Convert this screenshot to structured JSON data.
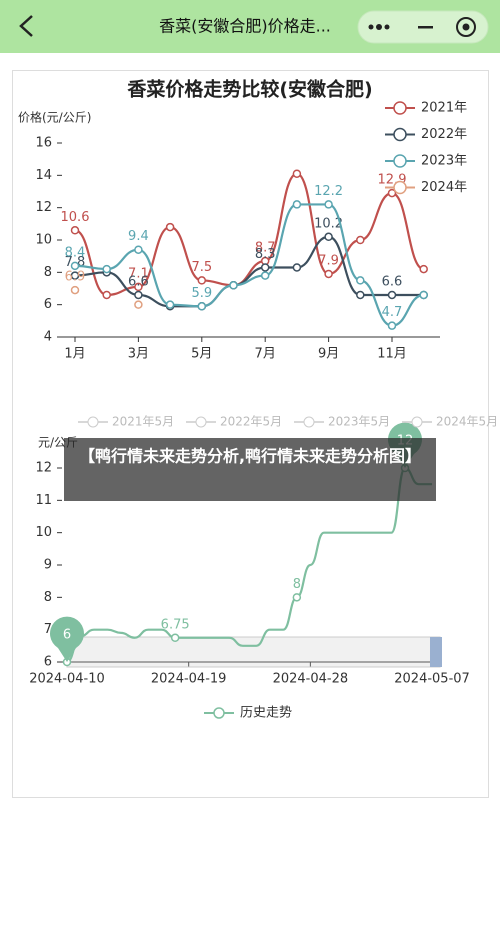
{
  "nav": {
    "title": "香菜(安徽合肥)价格走..."
  },
  "caption": "【鸭行情未来走势分析,鸭行情未来走势分析图】",
  "chart_data": [
    {
      "type": "line",
      "title": "香菜价格走势比较(安徽合肥)",
      "y_label": "价格(元/公斤)",
      "categories": [
        "1月",
        null,
        "3月",
        null,
        "5月",
        null,
        "7月",
        null,
        "9月",
        null,
        "11月",
        null
      ],
      "ylim": [
        4,
        16
      ],
      "yticks": [
        4,
        6,
        8,
        10,
        12,
        14,
        16
      ],
      "legend": "top-right",
      "series": [
        {
          "name": "2021年",
          "color": "#c0504d",
          "values": [
            10.6,
            6.6,
            7.1,
            10.8,
            7.5,
            7.2,
            8.7,
            14.1,
            7.9,
            10,
            12.9,
            8.2
          ],
          "value_labels": [
            "10.6",
            null,
            "7.1",
            null,
            "7.5",
            null,
            "8.7",
            null,
            "7.9",
            null,
            "12.9",
            null
          ]
        },
        {
          "name": "2022年",
          "color": "#3d4f5e",
          "values": [
            7.8,
            8.0,
            6.6,
            5.9,
            5.9,
            7.2,
            8.3,
            8.3,
            10.2,
            6.6,
            6.6,
            6.6
          ],
          "value_labels": [
            "7.8",
            null,
            "6.6",
            null,
            null,
            null,
            "8.3",
            null,
            "10.2",
            null,
            "6.6",
            null
          ]
        },
        {
          "name": "2023年",
          "color": "#5aa5b0",
          "values": [
            8.4,
            8.2,
            9.4,
            6.0,
            5.9,
            7.2,
            7.8,
            12.2,
            12.2,
            7.5,
            4.7,
            6.6
          ],
          "value_labels": [
            "8.4",
            null,
            "9.4",
            null,
            "5.9",
            null,
            null,
            null,
            "12.2",
            null,
            "4.7",
            null
          ]
        },
        {
          "name": "2024年",
          "color": "#e0a080",
          "values": [
            6.9,
            null,
            6.0,
            null,
            null,
            null,
            null,
            null,
            null,
            null,
            null,
            null
          ],
          "value_labels": [
            "6.9",
            null,
            null,
            null,
            null,
            null,
            null,
            null,
            null,
            null,
            null,
            null
          ]
        }
      ]
    },
    {
      "type": "line",
      "y_label": "元/公斤",
      "faded_legend": [
        "2021年5月",
        "2022年5月",
        "2023年5月",
        "2024年5月"
      ],
      "categories": [
        "2024-04-10",
        null,
        null,
        null,
        null,
        null,
        null,
        null,
        null,
        "2024-04-19",
        null,
        null,
        null,
        null,
        null,
        null,
        null,
        null,
        "2024-04-28",
        null,
        null,
        null,
        null,
        null,
        null,
        null,
        null,
        "2024-05-07"
      ],
      "ylim": [
        6,
        12
      ],
      "yticks": [
        6,
        7,
        8,
        9,
        10,
        11,
        12
      ],
      "legend": "bottom",
      "series": [
        {
          "name": "历史走势",
          "color": "#7fbfa0",
          "values": [
            6,
            6.8,
            7,
            7,
            6.9,
            6.75,
            7,
            7,
            6.75,
            6.75,
            6.75,
            6.75,
            6.75,
            6.5,
            6.5,
            7,
            7,
            8,
            9,
            10,
            10,
            10,
            10,
            10,
            10,
            12,
            11.5,
            11.5
          ],
          "value_labels": [
            "6",
            null,
            null,
            null,
            null,
            null,
            null,
            null,
            "6.75",
            null,
            null,
            null,
            null,
            null,
            null,
            null,
            null,
            "8",
            null,
            null,
            null,
            null,
            null,
            null,
            null,
            "12",
            null,
            null
          ]
        }
      ]
    }
  ]
}
